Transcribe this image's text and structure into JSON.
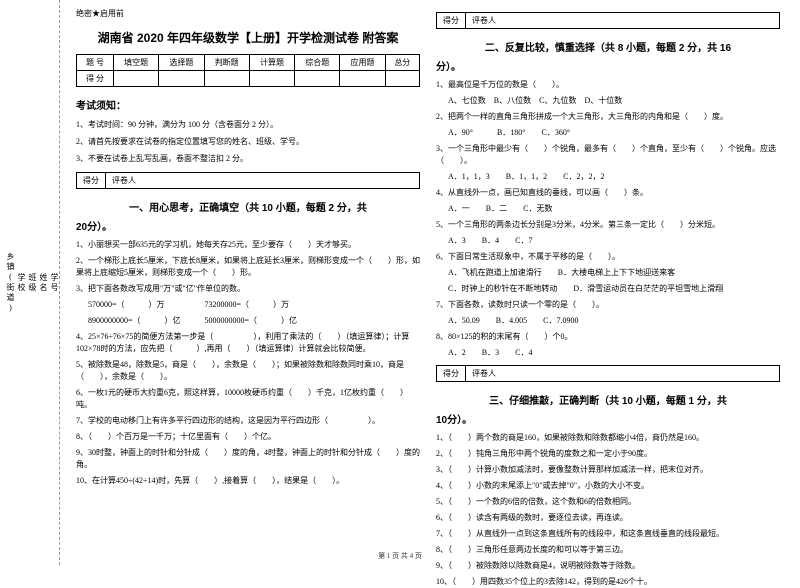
{
  "binding": {
    "labels": [
      "学号",
      "姓名",
      "班级",
      "学校",
      "乡镇(街道)"
    ],
    "fold_marks": [
      "题",
      "答",
      "本",
      "内",
      "线",
      "封",
      "密"
    ]
  },
  "header": {
    "secret": "绝密★启用前",
    "title": "湖南省 2020 年四年级数学【上册】开学检测试卷 附答案"
  },
  "score_table": {
    "row1": [
      "题  号",
      "填空题",
      "选择题",
      "判断题",
      "计算题",
      "综合题",
      "应用题",
      "总分"
    ],
    "row2_label": "得  分"
  },
  "notice": {
    "title": "考试须知：",
    "items": [
      "1、考试时间：90 分钟，满分为 100 分（含卷面分 2 分）。",
      "2、请首先按要求在试卷的指定位置填写您的姓名、班级、学号。",
      "3、不要在试卷上乱写乱画，卷面不整洁扣 2 分。"
    ]
  },
  "scorebox": {
    "left": "得分",
    "right": "评卷人"
  },
  "section1": {
    "title": "一、用心思考，正确填空（共 10 小题，每题 2 分，共",
    "title_cont": "20分）。",
    "q1": "1、小丽想买一部635元的学习机，她每天存25元，至少要存（　　）天才够买。",
    "q2": "2、一个梯形上底长5厘米，下底长8厘米，如果将上底延长3厘米，则梯形变成一个（　　）形，如果将上底缩短5厘米，则梯形变成一个（　　）形。",
    "q3": "3、把下面各数改写成用\"万\"或\"亿\"作单位的数。",
    "q3a": "570000=（　　　）万　　　　　73200000=（　　　）万",
    "q3b": "8900000000=（　　　）亿　　　5000000000=（　　　）亿",
    "q4": "4、25×76÷76×75的简便方法第一步是（　　　　　），利用了乘法的（　　）（填运算律）；计算102×78时的方法，应先把（　　　）,再用（　　）（填运算律）计算就会比较简便。",
    "q5": "5、被除数是48，除数是5，商是（　　），余数是（　　）；如果被除数和除数同时乘10，商是（　　），余数是（　　）。",
    "q6": "6、一枚1元的硬币大约重6克，照这样算，10000枚硬币约重（　　）千克，1亿枚约重（　　）吨。",
    "q7": "7、学校的电动移门上有许多平行四边形的结构，这是因为平行四边形（　　　　　）。",
    "q8": "8、（　　）个百万是一千万；十亿里面有（　　）个亿。",
    "q9": "9、30时整，钟面上的时针和分针成（　　）度的角，4时整，钟面上的时针和分针成（　　）度的角。",
    "q10": "10、在计算450÷(42÷14)时，先算（　　）,接着算（　　），结果是（　　）。"
  },
  "section2": {
    "title": "二、反复比较，慎重选择（共 8 小题，每题 2 分，共 16",
    "title_cont": "分）。",
    "q1": "1、最高位是千万位的数是（　　）。",
    "q1o": "A、七位数　B、八位数　C、九位数　D、十位数",
    "q2": "2、把两个一样的直角三角形拼成一个大三角形，大三角形的内角和是（　　）度。",
    "q2o": "A．90°　　　B．180°　　C．360°",
    "q3": "3、一个三角形中最少有（　　）个锐角，最多有（　　）个直角，至少有（　　）个锐角。应选（　　）。",
    "q3o": "A．1，1，3　　B．1，1，2　　C．2，2，2",
    "q4": "4、从直线外一点，画已知直线的垂线，可以画（　　）条。",
    "q4o": "A．一　　B．二　　C．无数",
    "q5": "5、一个三角形的两条边长分别是3分米，4分米。第三条一定比（　　）分米短。",
    "q5o": "A．3　　B．4　　C．7",
    "q6": "6、下面日常生活现象中，不属于平移的是（　　）。",
    "q6a": "A．飞机在跑道上加速滑行　　B．大楼电梯上上下下地迎送来客",
    "q6b": "C．时钟上的秒针在不断地转动　　D．滑雪运动员在白茫茫的平坦雪地上滑翔",
    "q7": "7、下面各数，读数时只读一个零的是（　　）。",
    "q7o": "A．50.09　　B．4.005　　C．7.0900",
    "q8": "8、80×125的积的末尾有（　　）个0。",
    "q8o": "A．2　　B．3　　C．4"
  },
  "section3": {
    "title": "三、仔细推敲，正确判断（共 10 小题，每题 1 分，共",
    "title_cont": "10分）。",
    "q1": "1、（　　）两个数的商是160，如果被除数和除数都缩小4倍，商仍然是160。",
    "q2": "2、（　　）钝角三角形中两个锐角的度数之和一定小于90度。",
    "q3": "3、（　　）计算小数加减法时，要像整数计算那样加减法一样，把末位对齐。",
    "q4": "4、（　　）小数的末尾添上\"0\"或去掉\"0\"，小数的大小不变。",
    "q5": "5、（　　）一个数的6倍的倍数，这个数和6的倍数相同。",
    "q6": "6、（　　）读含有两级的数时，要逐位去读，再连读。",
    "q7": "7、（　　）从直线外一点到这条直线所有的线段中，和这条直线垂直的线段最短。",
    "q8": "8、（　　）三角形任意两边长度的和可以等于第三边。",
    "q9": "9、（　　）被除数除以除数商是4，说明被除数等于除数。",
    "q10": "10、（　　）用四数35个位上的3去除142，得到的是426个十。"
  },
  "footer": "第 1 页  共 4 页"
}
